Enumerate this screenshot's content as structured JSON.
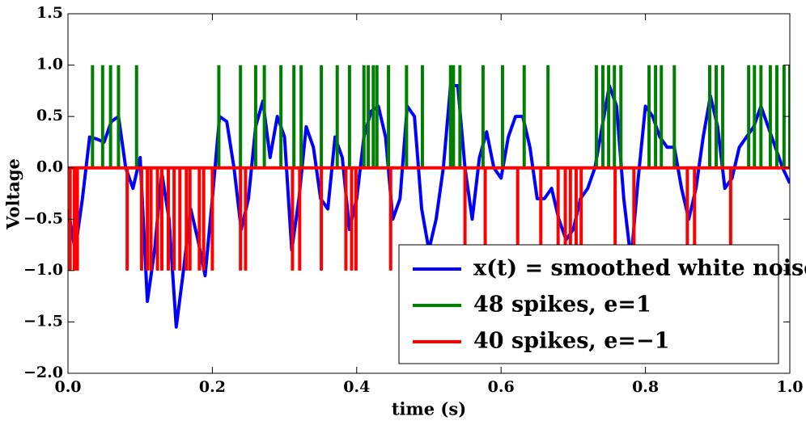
{
  "chart_data": {
    "type": "line",
    "xlabel": "time (s)",
    "ylabel": "Voltage",
    "xlim": [
      0,
      1
    ],
    "ylim": [
      -2,
      1.5
    ],
    "xticks": [
      {
        "value": 0,
        "label": "0.0"
      },
      {
        "value": 0.2,
        "label": "0.2"
      },
      {
        "value": 0.4,
        "label": "0.4"
      },
      {
        "value": 0.6,
        "label": "0.6"
      },
      {
        "value": 0.8,
        "label": "0.8"
      },
      {
        "value": 1,
        "label": "1.0"
      }
    ],
    "yticks": [
      {
        "value": -2,
        "label": "−2.0"
      },
      {
        "value": -1.5,
        "label": "−1.5"
      },
      {
        "value": -1,
        "label": "−1.0"
      },
      {
        "value": -0.5,
        "label": "−0.5"
      },
      {
        "value": 0,
        "label": "0.0"
      },
      0.5,
      {
        "value": 1,
        "label": "1.0"
      },
      1.5
    ],
    "legend": "lower right",
    "series": [
      {
        "name": "x(t) = smoothed white noise",
        "color": "#0000ff",
        "style": "line",
        "x": [
          0,
          0.01,
          0.02,
          0.03,
          0.04,
          0.05,
          0.06,
          0.07,
          0.08,
          0.09,
          0.1,
          0.11,
          0.12,
          0.13,
          0.14,
          0.15,
          0.16,
          0.17,
          0.18,
          0.19,
          0.2,
          0.21,
          0.22,
          0.23,
          0.24,
          0.25,
          0.26,
          0.27,
          0.28,
          0.29,
          0.3,
          0.31,
          0.32,
          0.33,
          0.34,
          0.35,
          0.36,
          0.37,
          0.38,
          0.39,
          0.4,
          0.41,
          0.42,
          0.43,
          0.44,
          0.45,
          0.46,
          0.47,
          0.48,
          0.49,
          0.5,
          0.51,
          0.52,
          0.53,
          0.54,
          0.55,
          0.56,
          0.57,
          0.58,
          0.59,
          0.6,
          0.61,
          0.62,
          0.63,
          0.64,
          0.65,
          0.66,
          0.67,
          0.68,
          0.69,
          0.7,
          0.71,
          0.72,
          0.73,
          0.74,
          0.75,
          0.76,
          0.77,
          0.78,
          0.79,
          0.8,
          0.81,
          0.82,
          0.83,
          0.84,
          0.85,
          0.86,
          0.87,
          0.88,
          0.89,
          0.9,
          0.91,
          0.92,
          0.93,
          0.94,
          0.95,
          0.96,
          0.97,
          0.98,
          0.99,
          1
        ],
        "values": [
          -0.4,
          -0.8,
          -0.3,
          0.3,
          0.28,
          0.25,
          0.45,
          0.5,
          0,
          -0.2,
          0.1,
          -1.3,
          -0.8,
          -0.05,
          -0.5,
          -1.55,
          -1,
          -0.4,
          -0.7,
          -1.05,
          -0.3,
          0.5,
          0.45,
          0,
          -0.6,
          -0.3,
          0.4,
          0.65,
          0.1,
          0.5,
          0.3,
          -0.8,
          -0.3,
          0.4,
          0.2,
          -0.3,
          -0.4,
          0.3,
          0.1,
          -0.6,
          -0.3,
          0.3,
          0.55,
          0.6,
          0.3,
          -0.5,
          -0.3,
          0.6,
          0.5,
          -0.4,
          -0.8,
          -0.5,
          0,
          0.8,
          0.8,
          0,
          -0.5,
          0.1,
          0.35,
          0,
          -0.1,
          0.3,
          0.5,
          0.5,
          0.2,
          -0.3,
          -0.3,
          -0.2,
          -0.5,
          -0.7,
          -0.6,
          -0.3,
          -0.2,
          0,
          0.4,
          0.8,
          0.6,
          -0.3,
          -0.9,
          -0.1,
          0.6,
          0.5,
          0.3,
          0.2,
          0.2,
          -0.2,
          -0.5,
          -0.2,
          0.3,
          0.7,
          0.4,
          -0.2,
          -0.1,
          0.2,
          0.3,
          0.4,
          0.6,
          0.4,
          0.2,
          0,
          -0.15
        ]
      },
      {
        "name": "48 spikes, e=1",
        "color": "#008000",
        "style": "spikes",
        "x": [
          0.034,
          0.048,
          0.059,
          0.07,
          0.095,
          0.209,
          0.239,
          0.26,
          0.272,
          0.295,
          0.313,
          0.323,
          0.351,
          0.373,
          0.39,
          0.41,
          0.416,
          0.423,
          0.428,
          0.444,
          0.469,
          0.491,
          0.53,
          0.534,
          0.543,
          0.575,
          0.602,
          0.632,
          0.665,
          0.732,
          0.741,
          0.749,
          0.757,
          0.766,
          0.805,
          0.814,
          0.822,
          0.84,
          0.889,
          0.898,
          0.907,
          0.943,
          0.951,
          0.96,
          0.973,
          0.982,
          0.992,
          1
        ],
        "values": [
          1,
          1,
          1,
          1,
          1,
          1,
          1,
          1,
          1,
          1,
          1,
          1,
          1,
          1,
          1,
          1,
          1,
          1,
          1,
          1,
          1,
          1,
          1,
          1,
          1,
          1,
          1,
          1,
          1,
          1,
          1,
          1,
          1,
          1,
          1,
          1,
          1,
          1,
          1,
          1,
          1,
          1,
          1,
          1,
          1,
          1,
          1,
          1
        ]
      },
      {
        "name": "40 spikes, e=−1",
        "color": "#ff0000",
        "style": "spikes",
        "x": [
          0.003,
          0.009,
          0.013,
          0.082,
          0.102,
          0.11,
          0.115,
          0.124,
          0.13,
          0.139,
          0.147,
          0.155,
          0.164,
          0.169,
          0.182,
          0.188,
          0.2,
          0.239,
          0.246,
          0.311,
          0.321,
          0.351,
          0.385,
          0.393,
          0.399,
          0.447,
          0.55,
          0.578,
          0.623,
          0.655,
          0.679,
          0.689,
          0.696,
          0.704,
          0.711,
          0.758,
          0.784,
          0.858,
          0.868,
          0.918
        ],
        "values": [
          -1,
          -1,
          -1,
          -1,
          -1,
          -1,
          -1,
          -1,
          -1,
          -1,
          -1,
          -1,
          -1,
          -1,
          -1,
          -1,
          -1,
          -1,
          -1,
          -1,
          -1,
          -1,
          -1,
          -1,
          -1,
          -1,
          -1,
          -1,
          -1,
          -1,
          -1,
          -1,
          -1,
          -1,
          -1,
          -1,
          -1,
          -1,
          -1,
          -1
        ]
      }
    ]
  }
}
